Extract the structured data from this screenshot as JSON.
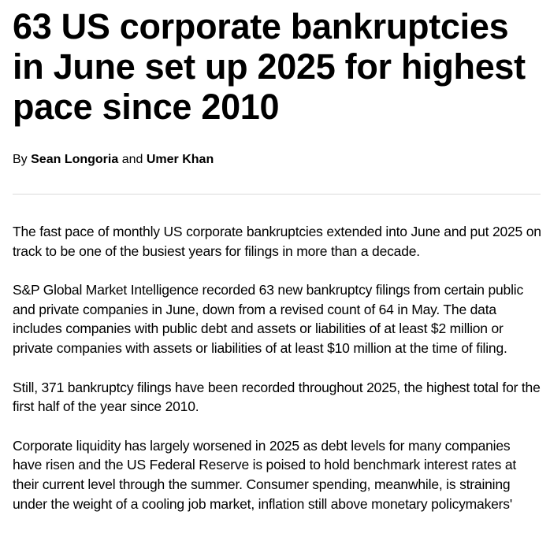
{
  "article": {
    "headline": "63 US corporate bankruptcies in June set up 2025 for highest pace since 2010",
    "byline": {
      "prefix": "By",
      "author1": "Sean Longoria",
      "conjunction": "and",
      "author2": "Umer Khan"
    },
    "paragraphs": [
      "The fast pace of monthly US corporate bankruptcies extended into June and put 2025 on track to be one of the busiest years for filings in more than a decade.",
      "S&P Global Market Intelligence recorded 63 new bankruptcy filings from certain public and private companies in June, down from a revised count of 64 in May. The data includes companies with public debt and assets or liabilities of at least $2 million or private companies with assets or liabilities of at least $10 million at the time of filing.",
      "Still, 371 bankruptcy filings have been recorded throughout 2025, the highest total for the first half of the year since 2010.",
      "Corporate liquidity has largely worsened in 2025 as debt levels for many companies have risen and the US Federal Reserve is poised to hold benchmark interest rates at their current level through the summer. Consumer spending, meanwhile, is straining under the weight of a cooling job market, inflation still above monetary policymakers'"
    ]
  }
}
